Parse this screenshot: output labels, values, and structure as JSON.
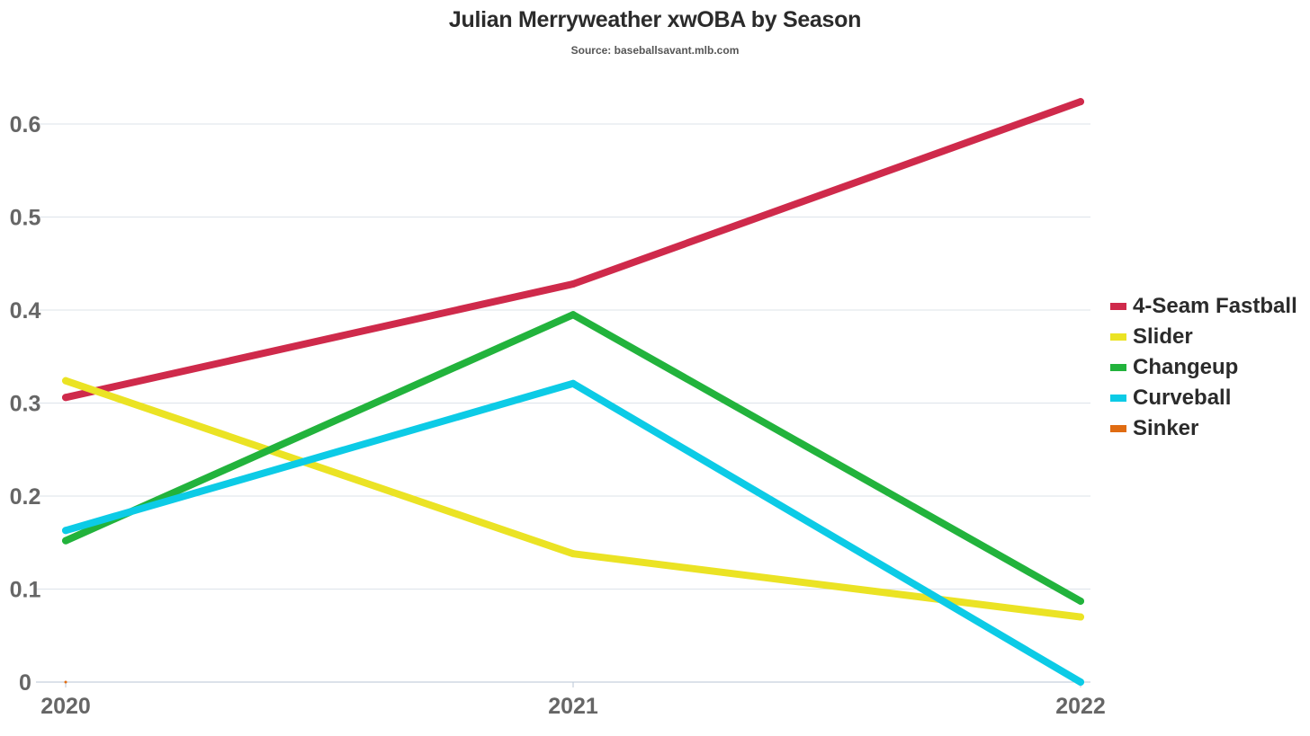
{
  "chart_data": {
    "type": "line",
    "title": "Julian Merryweather xwOBA by Season",
    "subtitle": "Source: baseballsavant.mlb.com",
    "xlabel": "",
    "ylabel": "",
    "x": [
      "2020",
      "2021",
      "2022"
    ],
    "ylim": [
      0,
      0.6
    ],
    "yticks": [
      "0",
      "0.1",
      "0.2",
      "0.3",
      "0.4",
      "0.5",
      "0.6"
    ],
    "grid": true,
    "legend_position": "right",
    "series": [
      {
        "name": "4-Seam Fastball",
        "color": "#cf2a4b",
        "values": [
          0.306,
          0.428,
          0.624
        ]
      },
      {
        "name": "Slider",
        "color": "#ebe324",
        "values": [
          0.324,
          0.138,
          0.07
        ]
      },
      {
        "name": "Changeup",
        "color": "#22b33c",
        "values": [
          0.152,
          0.395,
          0.087
        ]
      },
      {
        "name": "Curveball",
        "color": "#0ccbe6",
        "values": [
          0.163,
          0.321,
          0.0
        ]
      },
      {
        "name": "Sinker",
        "color": "#e06c12",
        "values": [
          0.0,
          null,
          null
        ]
      }
    ]
  }
}
